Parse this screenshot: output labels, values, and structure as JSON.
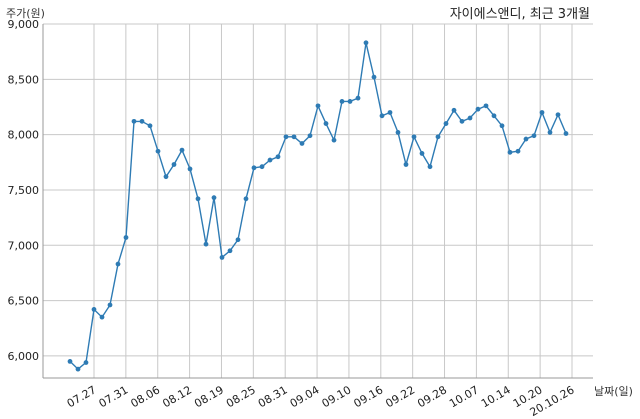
{
  "chart_data": {
    "type": "line",
    "title": "자이에스앤디, 최근 3개월",
    "ylabel": "주가(원)",
    "xlabel": "날짜(일)",
    "ylim": [
      5800,
      9000
    ],
    "yticks": [
      6000,
      6500,
      7000,
      7500,
      8000,
      8500,
      9000
    ],
    "ytick_labels": [
      "6,000",
      "6,500",
      "7,000",
      "7,500",
      "8,000",
      "8,500",
      "9,000"
    ],
    "xtick_labels": [
      "07.27",
      "07.31",
      "08.06",
      "08.12",
      "08.19",
      "08.25",
      "08.31",
      "09.04",
      "09.10",
      "09.16",
      "09.22",
      "09.28",
      "10.07",
      "10.14",
      "10.20",
      "20.10.26"
    ],
    "grid": true,
    "color": "#2e7bb4",
    "series": [
      {
        "values": [
          5950,
          5880,
          5940,
          6420,
          6350,
          6460,
          6830,
          7070,
          8120,
          8120,
          8080,
          7850,
          7620,
          7730,
          7860,
          7690,
          7420,
          7010,
          7430,
          6890,
          6950,
          7050,
          7420,
          7700,
          7710,
          7770,
          7800,
          7980,
          7980,
          7920,
          7990,
          8260,
          8100,
          7950,
          8300,
          8300,
          8330,
          8830,
          8520,
          8170,
          8200,
          8020,
          7730,
          7980,
          7830,
          7710,
          7980,
          8100,
          8220,
          8120,
          8150,
          8230,
          8260,
          8170,
          8080,
          7840,
          7850,
          7960,
          7990,
          8200,
          8020,
          8180,
          8010
        ]
      }
    ]
  }
}
